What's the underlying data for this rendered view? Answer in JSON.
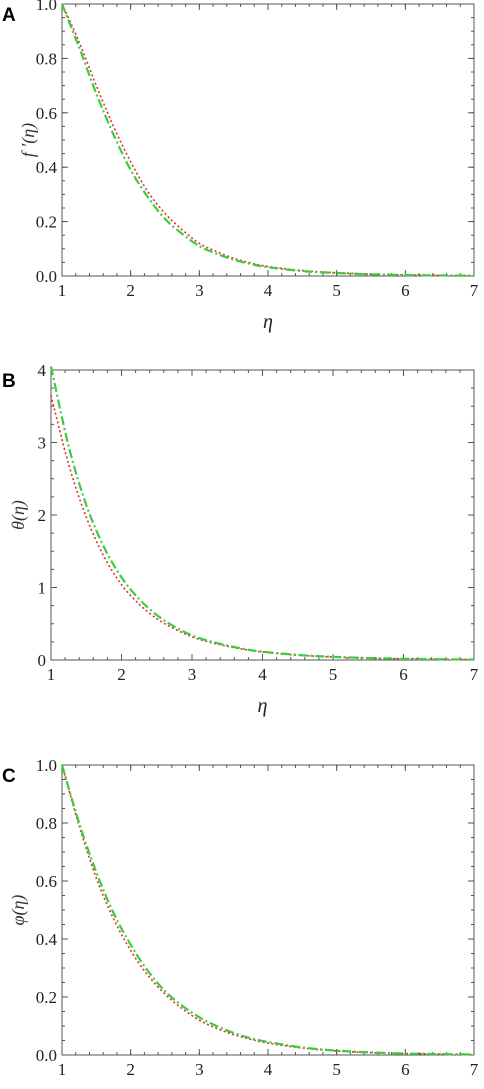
{
  "chart_data": [
    {
      "type": "line",
      "panel_label": "A",
      "xlabel": "η",
      "ylabel": "f ′(η)",
      "xlim": [
        1,
        7
      ],
      "ylim": [
        0,
        1.0
      ],
      "xticks": [
        "1",
        "2",
        "3",
        "4",
        "5",
        "6",
        "7"
      ],
      "yticks": [
        "0.0",
        "0.2",
        "0.4",
        "0.6",
        "0.8",
        "1.0"
      ],
      "x": [
        1.0,
        1.25,
        1.5,
        1.75,
        2.0,
        2.25,
        2.5,
        2.75,
        3.0,
        3.25,
        3.5,
        3.75,
        4.0,
        4.5,
        5.0,
        5.5,
        6.0,
        6.5,
        7.0
      ],
      "series": [
        {
          "color": "#e0302b",
          "dash": "dotted",
          "values": [
            1.0,
            0.86,
            0.7,
            0.55,
            0.42,
            0.31,
            0.23,
            0.17,
            0.12,
            0.09,
            0.065,
            0.048,
            0.035,
            0.02,
            0.012,
            0.007,
            0.004,
            0.002,
            0.001
          ]
        },
        {
          "color": "#3ccc3c",
          "dash": "dashdot",
          "values": [
            1.0,
            0.84,
            0.67,
            0.52,
            0.39,
            0.29,
            0.21,
            0.155,
            0.11,
            0.082,
            0.06,
            0.044,
            0.032,
            0.018,
            0.011,
            0.006,
            0.0035,
            0.002,
            0.001
          ]
        }
      ]
    },
    {
      "type": "line",
      "panel_label": "B",
      "xlabel": "η",
      "ylabel": "θ(η)",
      "xlim": [
        1,
        7
      ],
      "ylim": [
        0,
        4
      ],
      "xticks": [
        "1",
        "2",
        "3",
        "4",
        "5",
        "6",
        "7"
      ],
      "yticks": [
        "0",
        "1",
        "2",
        "3",
        "4"
      ],
      "x": [
        1.0,
        1.25,
        1.5,
        1.75,
        2.0,
        2.25,
        2.5,
        2.75,
        3.0,
        3.25,
        3.5,
        3.75,
        4.0,
        4.5,
        5.0,
        5.5,
        6.0,
        6.5,
        7.0
      ],
      "series": [
        {
          "color": "#e0302b",
          "dash": "dotted",
          "values": [
            3.65,
            2.7,
            1.97,
            1.43,
            1.04,
            0.77,
            0.57,
            0.43,
            0.32,
            0.245,
            0.19,
            0.145,
            0.11,
            0.067,
            0.042,
            0.026,
            0.016,
            0.01,
            0.006
          ]
        },
        {
          "color": "#3ccc3c",
          "dash": "dashdot",
          "values": [
            4.05,
            2.95,
            2.14,
            1.56,
            1.14,
            0.84,
            0.62,
            0.46,
            0.34,
            0.26,
            0.2,
            0.15,
            0.115,
            0.07,
            0.044,
            0.027,
            0.017,
            0.011,
            0.006
          ]
        }
      ]
    },
    {
      "type": "line",
      "panel_label": "C",
      "xlabel": "η",
      "ylabel": "φ(η)",
      "xlim": [
        1,
        7
      ],
      "ylim": [
        0,
        1.0
      ],
      "xticks": [
        "1",
        "2",
        "3",
        "4",
        "5",
        "6",
        "7"
      ],
      "yticks": [
        "0.0",
        "0.2",
        "0.4",
        "0.6",
        "0.8",
        "1.0"
      ],
      "x": [
        1.0,
        1.25,
        1.5,
        1.75,
        2.0,
        2.25,
        2.5,
        2.75,
        3.0,
        3.25,
        3.5,
        3.75,
        4.0,
        4.5,
        5.0,
        5.5,
        6.0,
        6.5,
        7.0
      ],
      "series": [
        {
          "color": "#e0302b",
          "dash": "dotted",
          "values": [
            1.0,
            0.79,
            0.61,
            0.47,
            0.36,
            0.275,
            0.21,
            0.16,
            0.12,
            0.092,
            0.07,
            0.054,
            0.041,
            0.024,
            0.014,
            0.008,
            0.005,
            0.003,
            0.0015
          ]
        },
        {
          "color": "#3ccc3c",
          "dash": "dashdot",
          "values": [
            1.0,
            0.8,
            0.63,
            0.49,
            0.38,
            0.29,
            0.22,
            0.17,
            0.13,
            0.1,
            0.076,
            0.058,
            0.045,
            0.026,
            0.015,
            0.009,
            0.005,
            0.003,
            0.0015
          ]
        }
      ]
    }
  ]
}
